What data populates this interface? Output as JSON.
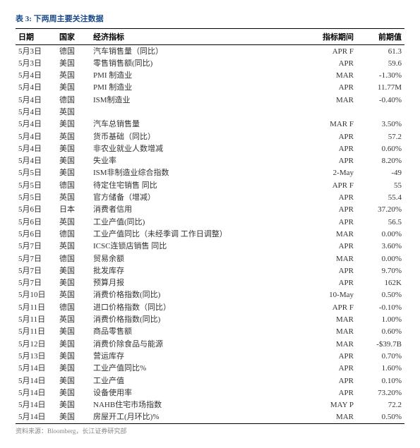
{
  "title": "表 3: 下两周主要关注数据",
  "columns": [
    "日期",
    "国家",
    "经济指标",
    "指标期间",
    "前期值"
  ],
  "rows": [
    [
      "5月3日",
      "德国",
      "汽车销售量（同比）",
      "APR F",
      "61.3"
    ],
    [
      "5月3日",
      "美国",
      "零售销售额(同比)",
      "APR",
      "59.6"
    ],
    [
      "5月4日",
      "英国",
      "PMI 制造业",
      "MAR",
      "-1.30%"
    ],
    [
      "5月4日",
      "美国",
      "PMI 制造业",
      "APR",
      "11.77M"
    ],
    [
      "5月4日",
      "德国",
      "ISM制造业",
      "MAR",
      "-0.40%"
    ],
    [
      "5月4日",
      "英国",
      "",
      "",
      ""
    ],
    [
      "5月4日",
      "美国",
      "汽车总销售量",
      "MAR F",
      "3.50%"
    ],
    [
      "5月4日",
      "英国",
      "货币基础（同比）",
      "APR",
      "57.2"
    ],
    [
      "5月4日",
      "美国",
      "非农业就业人数增减",
      "APR",
      "0.60%"
    ],
    [
      "5月4日",
      "美国",
      "失业率",
      "APR",
      "8.20%"
    ],
    [
      "5月5日",
      "美国",
      "ISM非制造业综合指数",
      "2-May",
      "-49"
    ],
    [
      "5月5日",
      "德国",
      "待定住宅销售 同比",
      "APR F",
      "55"
    ],
    [
      "5月5日",
      "英国",
      "官方储备（增减）",
      "APR",
      "55.4"
    ],
    [
      "5月6日",
      "日本",
      "消费者信用",
      "APR",
      "37.20%"
    ],
    [
      "5月6日",
      "英国",
      "工业产值(同比)",
      "APR",
      "56.5"
    ],
    [
      "5月6日",
      "德国",
      "工业产值同比（未经季调 工作日调整）",
      "MAR",
      "0.00%"
    ],
    [
      "5月7日",
      "英国",
      "ICSC连锁店销售 同比",
      "APR",
      "3.60%"
    ],
    [
      "5月7日",
      "德国",
      "贸易余额",
      "MAR",
      "0.00%"
    ],
    [
      "5月7日",
      "美国",
      "批发库存",
      "APR",
      "9.70%"
    ],
    [
      "5月7日",
      "美国",
      "预算月报",
      "APR",
      "162K"
    ],
    [
      "5月10日",
      "英国",
      "消费价格指数(同比)",
      "10-May",
      "0.50%"
    ],
    [
      "5月11日",
      "德国",
      "进口价格指数（同比）",
      "APR F",
      "-0.10%"
    ],
    [
      "5月11日",
      "英国",
      "消费价格指数(同比)",
      "MAR",
      "1.00%"
    ],
    [
      "5月11日",
      "美国",
      "商品零售额",
      "MAR",
      "0.60%"
    ],
    [
      "5月12日",
      "美国",
      "消费价除食品与能源",
      "MAR",
      "-$39.7B"
    ],
    [
      "5月13日",
      "美国",
      "营运库存",
      "APR",
      "0.70%"
    ],
    [
      "5月14日",
      "美国",
      "工业产值同比%",
      "APR",
      "1.60%"
    ],
    [
      "5月14日",
      "美国",
      "工业产值",
      "APR",
      "0.10%"
    ],
    [
      "5月14日",
      "美国",
      "设备使用率",
      "APR",
      "73.20%"
    ],
    [
      "5月14日",
      "美国",
      "NAHB住宅市场指数",
      "MAY P",
      "72.2"
    ],
    [
      "5月14日",
      "美国",
      "房屋开工(月环比)%",
      "MAR",
      "0.50%"
    ]
  ],
  "footnote": "资料来源：Bloomberg，长江证券研究部"
}
